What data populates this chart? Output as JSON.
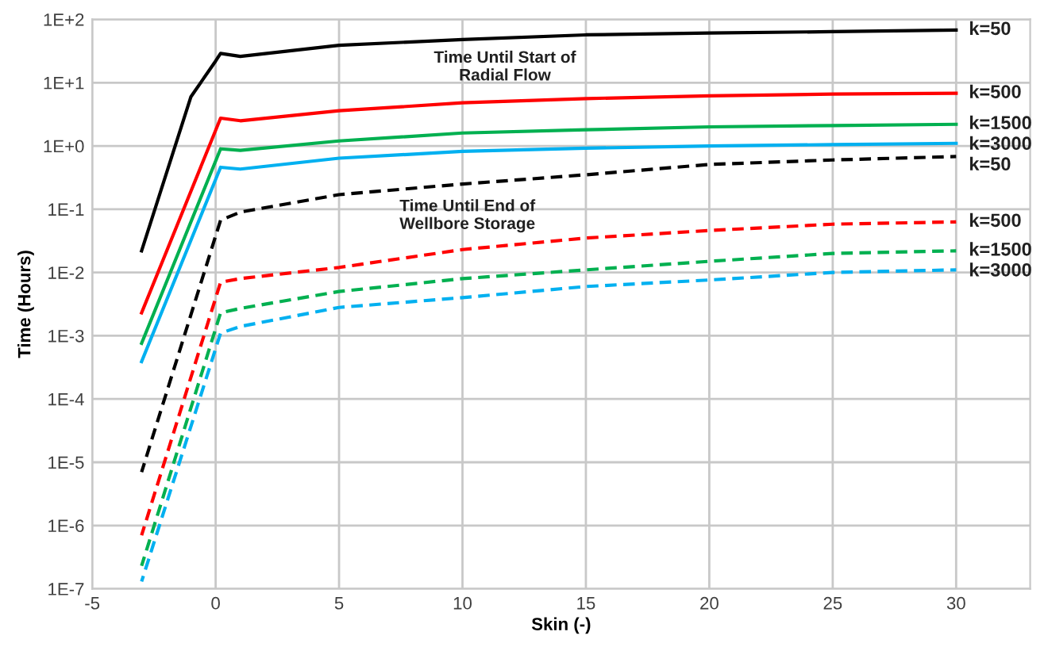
{
  "chart_data": {
    "type": "line",
    "xlabel": "Skin (-)",
    "ylabel": "Time (Hours)",
    "log": "y",
    "grid": true,
    "marker": "none",
    "xlim": [
      -5,
      33
    ],
    "xticks": [
      -5,
      0,
      5,
      10,
      15,
      20,
      25,
      30
    ],
    "ylim": [
      1e-07,
      100
    ],
    "yticks": [
      {
        "value": 1e-07,
        "label": "1E-7"
      },
      {
        "value": 1e-06,
        "label": "1E-6"
      },
      {
        "value": 1e-05,
        "label": "1E-5"
      },
      {
        "value": 0.0001,
        "label": "1E-4"
      },
      {
        "value": 0.001,
        "label": "1E-3"
      },
      {
        "value": 0.01,
        "label": "1E-2"
      },
      {
        "value": 0.1,
        "label": "1E-1"
      },
      {
        "value": 1,
        "label": "1E+0"
      },
      {
        "value": 10,
        "label": "1E+1"
      },
      {
        "value": 100,
        "label": "1E+2"
      }
    ],
    "x": [
      -3,
      0.2,
      1,
      5,
      10,
      15,
      20,
      25,
      30
    ],
    "series": [
      {
        "name": "k=50",
        "color": "#000000",
        "line_style": "solid",
        "x": [
          -3,
          -1,
          0,
          0.2,
          1,
          5,
          10,
          15,
          20,
          25,
          30
        ],
        "values": [
          0.022,
          6,
          22,
          29,
          26,
          39,
          48,
          57,
          61,
          64,
          68
        ]
      },
      {
        "name": "k=500",
        "color": "#ff0000",
        "line_style": "solid",
        "values": [
          0.0023,
          2.75,
          2.5,
          3.6,
          4.8,
          5.6,
          6.2,
          6.6,
          6.8
        ]
      },
      {
        "name": "k=1500",
        "color": "#00b050",
        "line_style": "solid",
        "values": [
          0.00076,
          0.9,
          0.85,
          1.2,
          1.6,
          1.8,
          2.0,
          2.1,
          2.2
        ]
      },
      {
        "name": "k=3000",
        "color": "#00b0f0",
        "line_style": "solid",
        "values": [
          0.00039,
          0.46,
          0.43,
          0.64,
          0.82,
          0.92,
          1.0,
          1.05,
          1.1
        ]
      },
      {
        "name": "k=50",
        "color": "#000000",
        "line_style": "dashed",
        "values": [
          7e-06,
          0.067,
          0.09,
          0.17,
          0.25,
          0.35,
          0.51,
          0.6,
          0.68
        ]
      },
      {
        "name": "k=500",
        "color": "#ff0000",
        "line_style": "dashed",
        "values": [
          7e-07,
          0.007,
          0.008,
          0.012,
          0.023,
          0.035,
          0.046,
          0.058,
          0.063
        ]
      },
      {
        "name": "k=1500",
        "color": "#00b050",
        "line_style": "dashed",
        "values": [
          2.3e-07,
          0.0023,
          0.0027,
          0.005,
          0.008,
          0.011,
          0.015,
          0.02,
          0.022
        ]
      },
      {
        "name": "k=3000",
        "color": "#00b0f0",
        "line_style": "dashed",
        "values": [
          1.3e-07,
          0.0011,
          0.0014,
          0.0028,
          0.004,
          0.006,
          0.0076,
          0.01,
          0.011
        ]
      }
    ],
    "annotations": [
      "Time Until Start of\nRadial Flow",
      "Time Until End of\nWellbore Storage"
    ]
  }
}
